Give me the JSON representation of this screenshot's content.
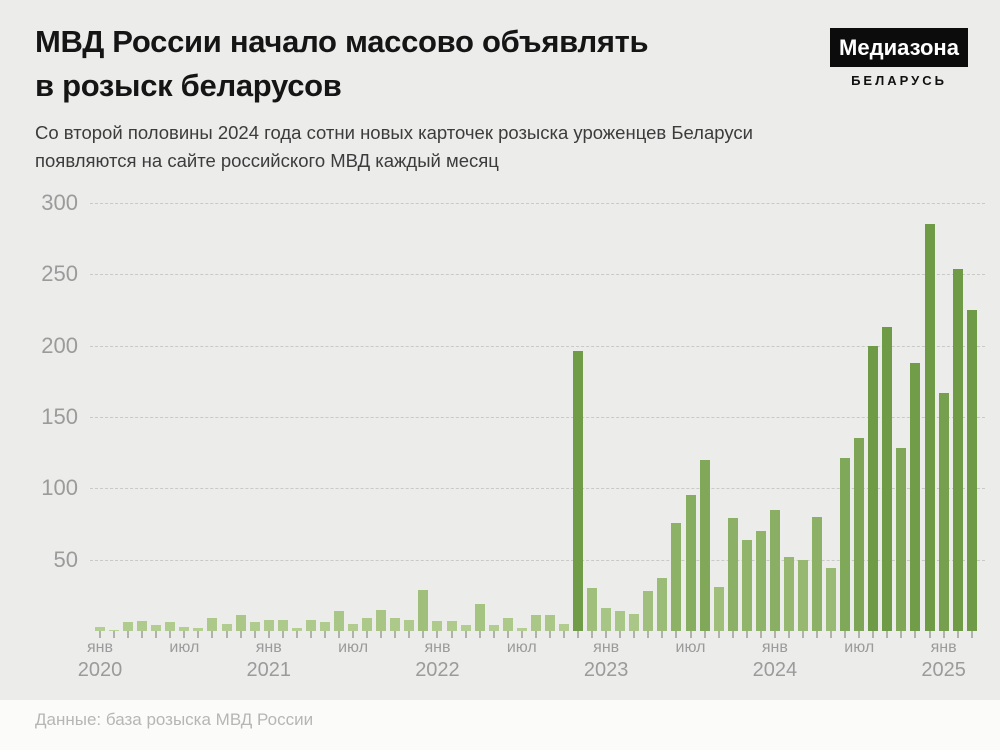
{
  "header": {
    "title_line1": "МВД России начало массово объявлять",
    "title_line2": "в розыск беларусов",
    "subtitle_line1": "Со второй половины 2024 года сотни новых карточек розыска уроженцев Беларуси",
    "subtitle_line2": "появляются на сайте российского МВД каждый месяц",
    "logo": {
      "name": "Медиазона",
      "region": "БЕЛАРУСЬ"
    }
  },
  "footer": {
    "source": "Данные: база розыска МВД России"
  },
  "chart_data": {
    "type": "bar",
    "title": "МВД России начало массово объявлять в розыск беларусов",
    "ylim": [
      0,
      300
    ],
    "yticks": [
      50,
      100,
      150,
      200,
      250,
      300
    ],
    "grid": "horizontal dashed",
    "legend": "none",
    "x_ticks": [
      {
        "month_index": 0,
        "month": "янв",
        "year": "2020"
      },
      {
        "month_index": 6,
        "month": "июл",
        "year": ""
      },
      {
        "month_index": 12,
        "month": "янв",
        "year": "2021"
      },
      {
        "month_index": 18,
        "month": "июл",
        "year": ""
      },
      {
        "month_index": 24,
        "month": "янв",
        "year": "2022"
      },
      {
        "month_index": 30,
        "month": "июл",
        "year": ""
      },
      {
        "month_index": 36,
        "month": "янв",
        "year": "2023"
      },
      {
        "month_index": 42,
        "month": "июл",
        "year": ""
      },
      {
        "month_index": 48,
        "month": "янв",
        "year": "2024"
      },
      {
        "month_index": 54,
        "month": "июл",
        "year": ""
      },
      {
        "month_index": 60,
        "month": "янв",
        "year": "2025"
      }
    ],
    "series": [
      {
        "year": "2020",
        "monthly_values": [
          3,
          1,
          6,
          7,
          4,
          6,
          3,
          2,
          9,
          5,
          11,
          6
        ]
      },
      {
        "year": "2021",
        "monthly_values": [
          8,
          8,
          2,
          8,
          6,
          14,
          5,
          9,
          15,
          9,
          8,
          29
        ]
      },
      {
        "year": "2022",
        "monthly_values": [
          7,
          7,
          4,
          19,
          4,
          9,
          2,
          11,
          11,
          5,
          196,
          30
        ]
      },
      {
        "year": "2023",
        "monthly_values": [
          16,
          14,
          12,
          28,
          37,
          76,
          95,
          120,
          31,
          79,
          64,
          70
        ]
      },
      {
        "year": "2024",
        "monthly_values": [
          85,
          52,
          50,
          80,
          44,
          121,
          135,
          200,
          213,
          128,
          188,
          285
        ]
      },
      {
        "year": "2025",
        "monthly_values": [
          167,
          254,
          225
        ]
      }
    ],
    "colors": {
      "bar_low": "#bdd59c",
      "bar_high": "#6f9b46",
      "background": "#ececeb",
      "grid": "#c9c9c5",
      "axis_text": "#9b9b9b",
      "tick": "#b2b2ac",
      "logo_bg": "#0c0c0c"
    }
  }
}
